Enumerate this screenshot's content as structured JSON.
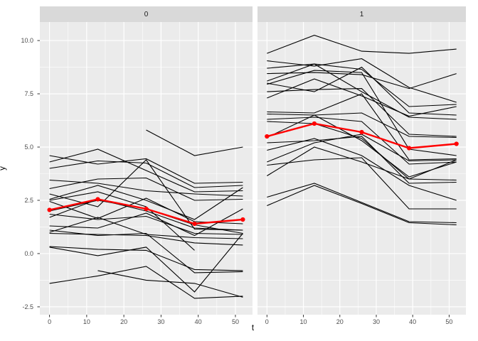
{
  "chart_data": {
    "type": "line",
    "description": "Faceted spaghetti plot of individual trajectories y vs t by group (facets 0 and 1), light gray panels with white gridlines, thin black subject lines and a thick red mean line with round markers at t = 0, 13, 26, 39, 52.",
    "xlabel": "t",
    "ylabel": "y",
    "x_ticks": [
      0,
      10,
      20,
      30,
      40,
      50
    ],
    "x_minor_ticks": [
      5,
      15,
      25,
      35,
      45
    ],
    "y_ticks": [
      -2.5,
      0.0,
      2.5,
      5.0,
      7.5,
      10.0
    ],
    "y_tick_labels": [
      "-2.5",
      "0.0",
      "2.5",
      "5.0",
      "7.5",
      "10.0"
    ],
    "y_minor_ticks": [
      -1.25,
      1.25,
      3.75,
      6.25,
      8.75
    ],
    "xlim": [
      -2.6,
      54.6
    ],
    "ylim": [
      -2.87,
      10.87
    ],
    "measurement_times": [
      0,
      13,
      26,
      39,
      52
    ],
    "legend": "none",
    "grid": "on",
    "facets": [
      {
        "label": "0",
        "lines": [
          {
            "t": [
              0,
              13,
              26,
              39,
              52
            ],
            "y": [
              4.6,
              4.2,
              4.45,
              3.3,
              3.35
            ]
          },
          {
            "t": [
              0,
              13,
              26,
              39,
              52
            ],
            "y": [
              4.3,
              4.9,
              3.9,
              2.9,
              2.95
            ]
          },
          {
            "t": [
              0,
              13,
              26,
              39,
              52
            ],
            "y": [
              4.0,
              4.35,
              4.25,
              3.1,
              3.2
            ]
          },
          {
            "t": [
              0,
              13,
              26,
              39,
              52
            ],
            "y": [
              3.45,
              3.3,
              2.95,
              2.8,
              2.7
            ]
          },
          {
            "t": [
              0,
              13,
              26,
              39,
              52
            ],
            "y": [
              3.05,
              3.5,
              3.55,
              2.5,
              2.55
            ]
          },
          {
            "t": [
              0,
              13,
              26,
              39,
              52
            ],
            "y": [
              2.8,
              2.2,
              4.4,
              1.15,
              1.1
            ]
          },
          {
            "t": [
              0,
              13,
              26,
              39,
              52
            ],
            "y": [
              2.55,
              3.2,
              2.5,
              1.6,
              3.1
            ]
          },
          {
            "t": [
              0,
              13,
              26,
              39,
              52
            ],
            "y": [
              2.45,
              1.65,
              2.6,
              1.5,
              1.4
            ]
          },
          {
            "t": [
              0,
              13,
              26,
              39
            ],
            "y": [
              2.5,
              2.9,
              2.2,
              0.15
            ]
          },
          {
            "t": [
              0,
              13,
              26,
              39,
              52
            ],
            "y": [
              2.0,
              2.5,
              2.1,
              1.35,
              0.95
            ]
          },
          {
            "t": [
              0,
              13,
              26,
              39,
              52
            ],
            "y": [
              1.85,
              1.6,
              1.75,
              0.95,
              0.9
            ]
          },
          {
            "t": [
              0,
              13,
              26,
              39,
              52
            ],
            "y": [
              1.7,
              2.55,
              2.0,
              1.2,
              1.1
            ]
          },
          {
            "t": [
              0,
              13,
              26,
              39,
              52
            ],
            "y": [
              1.3,
              1.2,
              1.9,
              0.85,
              2.1
            ]
          },
          {
            "t": [
              0,
              13,
              26,
              39,
              52
            ],
            "y": [
              1.1,
              0.85,
              0.95,
              -0.9,
              -0.85
            ]
          },
          {
            "t": [
              0,
              13,
              26,
              39,
              52
            ],
            "y": [
              1.0,
              1.7,
              0.9,
              0.75,
              0.7
            ]
          },
          {
            "t": [
              0,
              13,
              26,
              39,
              52
            ],
            "y": [
              0.95,
              0.9,
              0.85,
              0.5,
              0.4
            ]
          },
          {
            "t": [
              0,
              13,
              26,
              39,
              52
            ],
            "y": [
              0.33,
              0.2,
              0.15,
              -0.75,
              -0.8
            ]
          },
          {
            "t": [
              0,
              13,
              26,
              39,
              52
            ],
            "y": [
              -1.4,
              -1.05,
              -0.6,
              -2.1,
              -2.0
            ]
          },
          {
            "t": [
              0,
              13,
              26,
              39,
              52
            ],
            "y": [
              0.3,
              -0.1,
              0.3,
              -1.8,
              0.95
            ]
          },
          {
            "t": [
              26,
              39,
              52
            ],
            "y": [
              5.8,
              4.6,
              5.0
            ]
          },
          {
            "t": [
              13,
              26,
              39,
              52
            ],
            "y": [
              -0.8,
              -1.25,
              -1.4,
              -2.05
            ]
          }
        ],
        "mean_line": {
          "t": [
            0,
            13,
            26,
            39,
            52
          ],
          "y": [
            2.05,
            2.55,
            2.1,
            1.4,
            1.6
          ]
        }
      },
      {
        "label": "1",
        "lines": [
          {
            "t": [
              0,
              13,
              26,
              39,
              52
            ],
            "y": [
              9.4,
              10.25,
              9.5,
              9.4,
              9.6
            ]
          },
          {
            "t": [
              0,
              13,
              26,
              39,
              52
            ],
            "y": [
              9.05,
              8.8,
              9.15,
              7.8,
              7.1
            ]
          },
          {
            "t": [
              0,
              13,
              26,
              39,
              52
            ],
            "y": [
              8.7,
              8.9,
              8.65,
              6.9,
              7.0
            ]
          },
          {
            "t": [
              0,
              13,
              26,
              39,
              52
            ],
            "y": [
              8.45,
              8.5,
              8.4,
              7.75,
              8.45
            ]
          },
          {
            "t": [
              0,
              13,
              26,
              39,
              52
            ],
            "y": [
              8.1,
              8.9,
              7.6,
              6.4,
              6.3
            ]
          },
          {
            "t": [
              0,
              13,
              26,
              39,
              52
            ],
            "y": [
              8.0,
              7.6,
              8.75,
              6.6,
              6.5
            ]
          },
          {
            "t": [
              0,
              13,
              26,
              39,
              52
            ],
            "y": [
              7.95,
              8.6,
              8.5,
              4.9,
              4.6
            ]
          },
          {
            "t": [
              0,
              13,
              26,
              39,
              52
            ],
            "y": [
              7.6,
              7.7,
              7.75,
              5.6,
              5.5
            ]
          },
          {
            "t": [
              0,
              13,
              26,
              39,
              52
            ],
            "y": [
              7.3,
              8.2,
              7.4,
              6.45,
              6.9
            ]
          },
          {
            "t": [
              0,
              13,
              26,
              39,
              52
            ],
            "y": [
              6.65,
              6.6,
              7.5,
              4.4,
              4.45
            ]
          },
          {
            "t": [
              0,
              13,
              26,
              39,
              52
            ],
            "y": [
              6.55,
              6.5,
              6.6,
              5.5,
              5.45
            ]
          },
          {
            "t": [
              0,
              13,
              26,
              39,
              52
            ],
            "y": [
              6.3,
              6.4,
              6.2,
              4.2,
              4.3
            ]
          },
          {
            "t": [
              0,
              13,
              26,
              39,
              52
            ],
            "y": [
              6.2,
              6.1,
              5.4,
              3.5,
              4.4
            ]
          },
          {
            "t": [
              0,
              13,
              26,
              39,
              52
            ],
            "y": [
              5.45,
              6.5,
              5.3,
              3.6,
              4.3
            ]
          },
          {
            "t": [
              0,
              13,
              26,
              39,
              52
            ],
            "y": [
              5.2,
              5.3,
              5.5,
              3.3,
              3.35
            ]
          },
          {
            "t": [
              0,
              13,
              26,
              39,
              52
            ],
            "y": [
              4.85,
              5.4,
              4.6,
              3.2,
              2.5
            ]
          },
          {
            "t": [
              0,
              13,
              26,
              39,
              52
            ],
            "y": [
              4.3,
              5.2,
              5.6,
              4.35,
              4.4
            ]
          },
          {
            "t": [
              0,
              13,
              26,
              39,
              52
            ],
            "y": [
              4.15,
              4.4,
              4.5,
              2.1,
              2.1
            ]
          },
          {
            "t": [
              0,
              13,
              26,
              39,
              52
            ],
            "y": [
              3.65,
              5.0,
              4.3,
              3.5,
              3.45
            ]
          },
          {
            "t": [
              0,
              13,
              26,
              39,
              52
            ],
            "y": [
              2.65,
              3.3,
              2.4,
              1.5,
              1.45
            ]
          },
          {
            "t": [
              0,
              13,
              26,
              39,
              52
            ],
            "y": [
              2.25,
              3.2,
              2.35,
              1.45,
              1.35
            ]
          }
        ],
        "mean_line": {
          "t": [
            0,
            13,
            26,
            39,
            52
          ],
          "y": [
            5.5,
            6.1,
            5.7,
            4.95,
            5.15
          ]
        }
      }
    ],
    "colors": {
      "panel_background": "#EBEBEB",
      "strip_background": "#D9D9D9",
      "gridline": "#FFFFFF",
      "subject_line": "#000000",
      "mean_line": "#FF0000",
      "tick_mark": "#333333",
      "tick_text": "#4D4D4D",
      "strip_text": "#1A1A1A",
      "axis_title_text": "#000000"
    }
  }
}
